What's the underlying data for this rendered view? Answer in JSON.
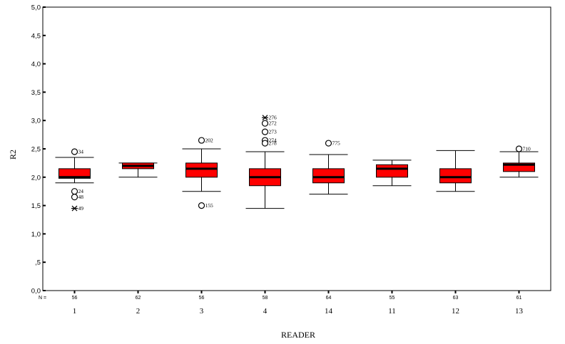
{
  "chart_data": {
    "type": "boxplot",
    "xlabel": "READER",
    "ylabel": "R2",
    "ylim": [
      0,
      5
    ],
    "yticks": [
      {
        "value": 0,
        "label": "0,0"
      },
      {
        "value": 0.5,
        "label": ",5"
      },
      {
        "value": 1.0,
        "label": "1,0"
      },
      {
        "value": 1.5,
        "label": "1,5"
      },
      {
        "value": 2.0,
        "label": "2,0"
      },
      {
        "value": 2.5,
        "label": "2,5"
      },
      {
        "value": 3.0,
        "label": "3,0"
      },
      {
        "value": 3.5,
        "label": "3,5"
      },
      {
        "value": 4.0,
        "label": "4,0"
      },
      {
        "value": 4.5,
        "label": "4,5"
      },
      {
        "value": 5.0,
        "label": "5,0"
      }
    ],
    "n_prefix": "N =",
    "box_color": "#ff0000",
    "categories": [
      {
        "label": "1",
        "n": "56",
        "whisker_low": 1.9,
        "q1": 1.98,
        "median": 2.0,
        "q3": 2.15,
        "whisker_high": 2.35,
        "outliers": [
          {
            "value": 2.45,
            "label": "34",
            "kind": "circle"
          },
          {
            "value": 1.75,
            "label": "24",
            "kind": "circle"
          },
          {
            "value": 1.65,
            "label": "48",
            "kind": "circle"
          },
          {
            "value": 1.45,
            "label": "49",
            "kind": "star"
          }
        ]
      },
      {
        "label": "2",
        "n": "62",
        "whisker_low": 2.0,
        "q1": 2.15,
        "median": 2.2,
        "q3": 2.25,
        "whisker_high": 2.25,
        "outliers": []
      },
      {
        "label": "3",
        "n": "56",
        "whisker_low": 1.75,
        "q1": 2.0,
        "median": 2.15,
        "q3": 2.25,
        "whisker_high": 2.5,
        "outliers": [
          {
            "value": 2.65,
            "label": "202",
            "kind": "circle"
          },
          {
            "value": 1.5,
            "label": "155",
            "kind": "circle"
          }
        ]
      },
      {
        "label": "4",
        "n": "58",
        "whisker_low": 1.45,
        "q1": 1.85,
        "median": 2.0,
        "q3": 2.15,
        "whisker_high": 2.45,
        "outliers": [
          {
            "value": 3.05,
            "label": "276",
            "kind": "star"
          },
          {
            "value": 2.95,
            "label": "272",
            "kind": "circle"
          },
          {
            "value": 2.8,
            "label": "273",
            "kind": "circle"
          },
          {
            "value": 2.65,
            "label": "274",
            "kind": "circle"
          },
          {
            "value": 2.6,
            "label": "278",
            "kind": "circle"
          }
        ]
      },
      {
        "label": "14",
        "n": "64",
        "whisker_low": 1.7,
        "q1": 1.9,
        "median": 2.0,
        "q3": 2.15,
        "whisker_high": 2.4,
        "outliers": [
          {
            "value": 2.6,
            "label": "775",
            "kind": "circle"
          }
        ]
      },
      {
        "label": "11",
        "n": "55",
        "whisker_low": 1.85,
        "q1": 2.0,
        "median": 2.15,
        "q3": 2.22,
        "whisker_high": 2.3,
        "outliers": []
      },
      {
        "label": "12",
        "n": "63",
        "whisker_low": 1.75,
        "q1": 1.9,
        "median": 2.0,
        "q3": 2.15,
        "whisker_high": 2.47,
        "outliers": []
      },
      {
        "label": "13",
        "n": "61",
        "whisker_low": 2.0,
        "q1": 2.1,
        "median": 2.22,
        "q3": 2.25,
        "whisker_high": 2.45,
        "outliers": [
          {
            "value": 2.5,
            "label": "710",
            "kind": "circle"
          }
        ]
      }
    ]
  }
}
